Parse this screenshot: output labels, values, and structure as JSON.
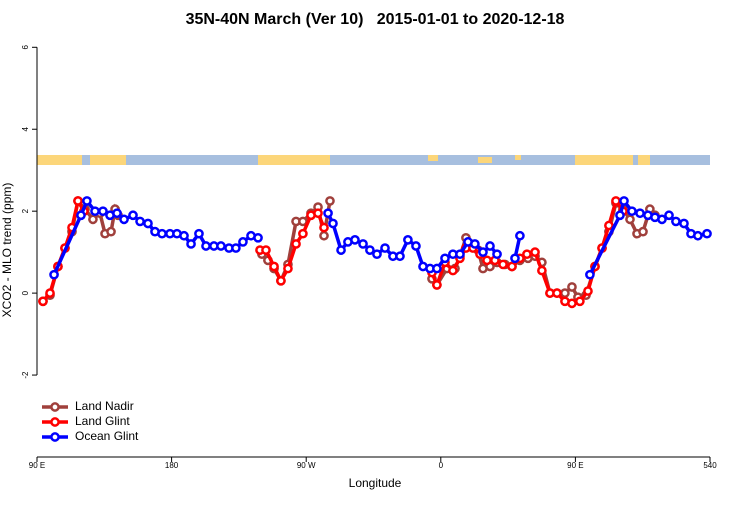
{
  "chart_data": {
    "type": "line",
    "title": "35N-40N March (Ver 10)   2015-01-01 to 2020-12-18",
    "x_label": "Longitude",
    "y_label": "XCO2 - MLO trend (ppm)",
    "xlim": [
      90,
      540
    ],
    "ylim": [
      -4,
      6.3
    ],
    "xticks": [
      {
        "value": 90,
        "label": "90 E"
      },
      180,
      {
        "value": 270,
        "label": "90 W"
      },
      {
        "value": 360,
        "label": "0"
      },
      {
        "value": 450,
        "label": "90 E"
      },
      540
    ],
    "yticks": [
      -2,
      0,
      2,
      4,
      6
    ],
    "legend": "bottomleft",
    "series": [
      {
        "name": "Land Nadir",
        "color": "#a0403c",
        "x": [
          94.0,
          98.7,
          104.0,
          108.7,
          113.4,
          117.4,
          122.1,
          127.4,
          132.1,
          135.5,
          139.5,
          142.2,
          144.2,
          null,
          240.4,
          244.4,
          248.5,
          253.1,
          257.8,
          263.2,
          267.8,
          273.2,
          277.9,
          281.9,
          285.9,
          null,
          354.1,
          357.4,
          364.1,
          369.5,
          372.8,
          376.8,
          380.2,
          384.9,
          388.2,
          392.9,
          397.6,
          402.9,
          407.6,
          412.9,
          418.3,
          423.0,
          427.6,
          433.0,
          437.7,
          443.0,
          447.7,
          451.7,
          457.1,
          463.1,
          467.8,
          472.4,
          477.1,
          481.8,
          486.5,
          491.2,
          495.2,
          499.8,
          503.2
        ],
        "values": [
          -0.2,
          -0.05,
          0.65,
          1.1,
          1.5,
          2.25,
          2.05,
          1.8,
          1.95,
          1.45,
          1.5,
          2.05,
          1.9,
          null,
          0.95,
          0.8,
          0.6,
          0.3,
          0.7,
          1.75,
          1.75,
          1.95,
          2.1,
          1.4,
          2.25,
          null,
          0.35,
          0.2,
          0.6,
          0.6,
          0.9,
          1.35,
          1.2,
          1.05,
          0.6,
          0.65,
          0.75,
          0.7,
          0.65,
          0.8,
          0.85,
          0.9,
          0.75,
          0,
          0,
          0,
          0.15,
          -0.1,
          -0.05,
          0.65,
          1.1,
          1.5,
          2.2,
          2.05,
          1.8,
          1.45,
          1.5,
          2.05,
          1.9
        ]
      },
      {
        "name": "Land Glint",
        "color": "#ff0000",
        "x": [
          94.0,
          98.7,
          104.0,
          108.7,
          113.4,
          117.4,
          121.4,
          null,
          239.1,
          243.1,
          248.5,
          253.1,
          257.8,
          263.2,
          267.8,
          273.2,
          277.9,
          281.9,
          null,
          354.1,
          357.4,
          362.8,
          368.1,
          372.8,
          376.8,
          381.5,
          386.2,
          390.9,
          396.2,
          401.6,
          407.6,
          412.9,
          417.6,
          423.0,
          427.6,
          433.0,
          437.7,
          443.0,
          447.7,
          453.0,
          458.4,
          463.1,
          467.8,
          472.4,
          477.1,
          481.8
        ],
        "values": [
          -0.2,
          0,
          0.65,
          1.1,
          1.6,
          2.25,
          2.0,
          null,
          1.05,
          1.05,
          0.65,
          0.3,
          0.6,
          1.2,
          1.45,
          1.9,
          1.95,
          1.6,
          null,
          0.5,
          0.2,
          0.75,
          0.55,
          0.85,
          1.1,
          1.1,
          0.95,
          0.8,
          0.8,
          0.7,
          0.65,
          0.85,
          0.95,
          1.0,
          0.55,
          0,
          0,
          -0.2,
          -0.25,
          -0.2,
          0.05,
          0.65,
          1.1,
          1.65,
          2.25,
          2.0
        ]
      },
      {
        "name": "Ocean Glint",
        "color": "#0000ff",
        "x": [
          101.4,
          119.4,
          123.4,
          128.8,
          134.1,
          138.8,
          143.5,
          148.2,
          154.2,
          158.9,
          164.2,
          168.9,
          173.6,
          178.9,
          183.6,
          188.3,
          193.0,
          198.3,
          203.0,
          208.3,
          213.0,
          218.4,
          223.0,
          227.7,
          233.1,
          237.8,
          null,
          284.6,
          287.9,
          293.3,
          297.9,
          302.6,
          308.0,
          312.6,
          317.3,
          322.7,
          328.0,
          332.7,
          338.0,
          343.4,
          348.1,
          352.8,
          357.4,
          362.8,
          368.1,
          372.8,
          378.2,
          382.8,
          388.2,
          392.9,
          397.6,
          null,
          409.6,
          412.9,
          null,
          459.7,
          479.8,
          482.5,
          487.8,
          493.2,
          498.5,
          503.2,
          507.9,
          512.6,
          517.2,
          522.6,
          527.3,
          531.9,
          538.0
        ],
        "values": [
          0.45,
          1.9,
          2.25,
          2.0,
          2.0,
          1.9,
          1.95,
          1.8,
          1.9,
          1.75,
          1.7,
          1.5,
          1.45,
          1.45,
          1.45,
          1.4,
          1.2,
          1.45,
          1.15,
          1.15,
          1.15,
          1.1,
          1.1,
          1.25,
          1.4,
          1.35,
          null,
          1.95,
          1.7,
          1.05,
          1.25,
          1.3,
          1.2,
          1.05,
          0.95,
          1.1,
          0.9,
          0.9,
          1.3,
          1.15,
          0.65,
          0.6,
          0.6,
          0.85,
          0.95,
          0.95,
          1.25,
          1.2,
          1.0,
          1.15,
          0.95,
          null,
          0.85,
          1.4,
          null,
          0.45,
          1.9,
          2.25,
          2.0,
          1.95,
          1.9,
          1.85,
          1.8,
          1.9,
          1.75,
          1.7,
          1.45,
          1.4,
          1.45
        ]
      }
    ]
  }
}
